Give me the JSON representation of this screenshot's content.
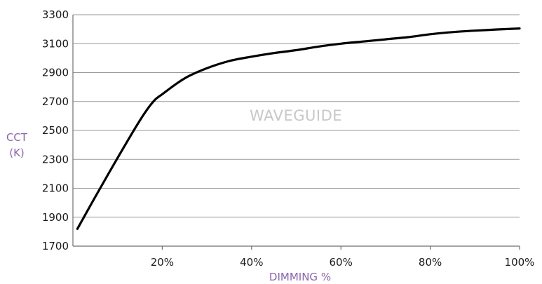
{
  "chart_data": {
    "type": "line",
    "title": "",
    "watermark": "WAVEGUIDE",
    "xlabel": "DIMMING %",
    "ylabel": [
      "CCT",
      "(K)"
    ],
    "xlim": [
      0,
      100
    ],
    "ylim": [
      1700,
      3300
    ],
    "x_ticks": [
      20,
      40,
      60,
      80,
      100
    ],
    "x_tick_labels": [
      "20%",
      "40%",
      "60%",
      "80%",
      "100%"
    ],
    "y_ticks": [
      1700,
      1900,
      2100,
      2300,
      2500,
      2700,
      2900,
      3100,
      3300
    ],
    "y_tick_labels": [
      "1700",
      "1900",
      "2100",
      "2300",
      "2500",
      "2700",
      "2900",
      "3100",
      "3300"
    ],
    "grid": "horizontal",
    "colors": {
      "series": "#000000",
      "axis_title": "#8a63b6",
      "grid": "#9a9a9a",
      "watermark": "#c8c8c8"
    },
    "series": [
      {
        "x": [
          1,
          5,
          10,
          15,
          18,
          20,
          25,
          30,
          35,
          40,
          45,
          50,
          55,
          60,
          65,
          70,
          75,
          80,
          85,
          90,
          95,
          100
        ],
        "y": [
          1820,
          2040,
          2310,
          2570,
          2700,
          2750,
          2860,
          2930,
          2980,
          3010,
          3035,
          3055,
          3080,
          3100,
          3115,
          3130,
          3145,
          3165,
          3180,
          3190,
          3198,
          3205
        ]
      }
    ]
  }
}
